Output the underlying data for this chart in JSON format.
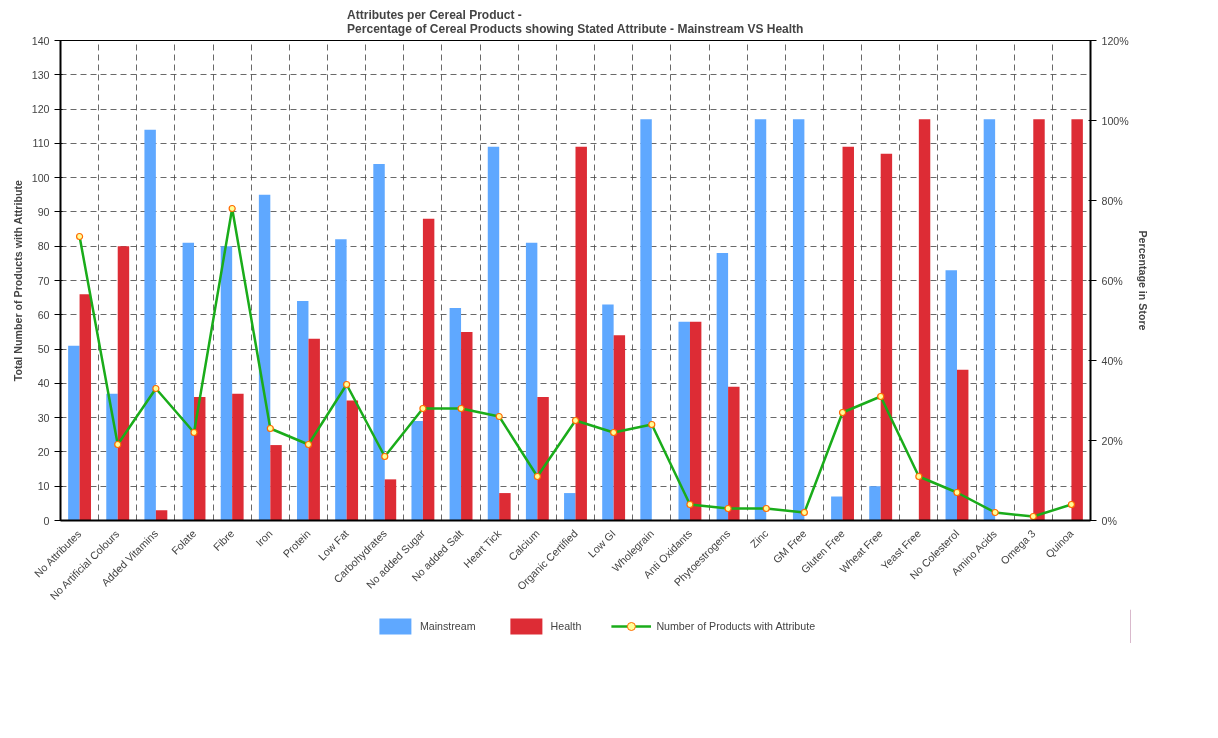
{
  "chart_data": {
    "type": "bar",
    "title": "Attributes per Cereal Product -\nPercentage of Cereal Products showing Stated Attribute - Mainstream VS Health",
    "ylabel": "Total Number of Products with Attribute",
    "y2label": "Percentage in Store",
    "categories": [
      "No Attributes",
      "No Artificial Colours",
      "Added Vitamins",
      "Folate",
      "Fibre",
      "Iron",
      "Protein",
      "Low Fat",
      "Carbohydrates",
      "No added Sugar",
      "No added Salt",
      "Heart Tick",
      "Calcium",
      "Organic Certified",
      "Low GI",
      "Wholegrain",
      "Anti Oxidants",
      "Phytoestrogens",
      "Zinc",
      "GM Free",
      "Gluten Free",
      "Wheat Free",
      "Yeast Free",
      "No Colesterol",
      "Amino Acids",
      "Omega 3",
      "Quinoa"
    ],
    "series": [
      {
        "name": "Mainstream",
        "color": "#5fa8ff",
        "values": [
          51,
          37,
          114,
          81,
          80,
          95,
          64,
          82,
          104,
          29,
          62,
          109,
          81,
          8,
          63,
          117,
          58,
          78,
          117,
          117,
          7,
          10,
          0,
          73,
          117,
          0,
          0
        ]
      },
      {
        "name": "Health",
        "color": "#dd2c35",
        "values": [
          66,
          80,
          3,
          36,
          37,
          22,
          53,
          35,
          12,
          88,
          55,
          8,
          36,
          109,
          54,
          0,
          58,
          39,
          0,
          0,
          109,
          107,
          117,
          44,
          0,
          117,
          117
        ]
      },
      {
        "name": "Number of Products with Attribute",
        "type": "line",
        "axis": "y2",
        "color": "#1aac1a",
        "marker": "circle",
        "values": [
          71,
          19,
          33,
          22,
          78,
          23,
          19,
          34,
          16,
          28,
          28,
          26,
          11,
          25,
          22,
          24,
          4,
          3,
          3,
          2,
          27,
          31,
          11,
          7,
          2,
          1,
          4
        ]
      }
    ],
    "ylim": [
      0,
      140
    ],
    "yticks": [
      0,
      10,
      20,
      30,
      40,
      50,
      60,
      70,
      80,
      90,
      100,
      110,
      120,
      130,
      140
    ],
    "y2lim": [
      0,
      120
    ],
    "y2ticks": [
      {
        "value": 0,
        "label": "0%"
      },
      {
        "value": 20,
        "label": "20%"
      },
      {
        "value": 40,
        "label": "40%"
      },
      {
        "value": 60,
        "label": "60%"
      },
      {
        "value": 80,
        "label": "80%"
      },
      {
        "value": 100,
        "label": "100%"
      },
      {
        "value": 120,
        "label": "120%"
      }
    ],
    "grid": true,
    "legend": "bottom"
  }
}
